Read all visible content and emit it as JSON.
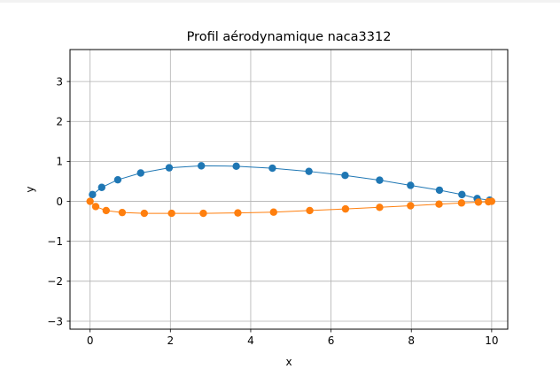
{
  "chart_data": {
    "type": "line",
    "title": "Profil aérodynamique naca3312",
    "xlabel": "x",
    "ylabel": "y",
    "xlim": [
      -0.5,
      10.4
    ],
    "ylim": [
      -3.2,
      3.8
    ],
    "xticks": [
      0,
      2,
      4,
      6,
      8,
      10
    ],
    "xtick_labels": [
      "0",
      "2",
      "4",
      "6",
      "8",
      "10"
    ],
    "yticks": [
      -3,
      -2,
      -1,
      0,
      1,
      2,
      3
    ],
    "ytick_labels": [
      "−3",
      "−2",
      "−1",
      "0",
      "1",
      "2",
      "3"
    ],
    "grid": true,
    "legend": "none",
    "series": [
      {
        "color": "#1f77b4",
        "marker": "circle",
        "x": [
          9.95,
          9.64,
          9.26,
          8.7,
          7.98,
          7.21,
          6.35,
          5.45,
          4.54,
          3.64,
          2.77,
          1.97,
          1.26,
          0.69,
          0.29,
          0.06
        ],
        "y": [
          0.03,
          0.07,
          0.17,
          0.28,
          0.4,
          0.53,
          0.65,
          0.75,
          0.83,
          0.88,
          0.89,
          0.84,
          0.71,
          0.54,
          0.35,
          0.17
        ]
      },
      {
        "color": "#ff7f0e",
        "marker": "circle",
        "x": [
          0.0,
          0.14,
          0.4,
          0.8,
          1.35,
          2.03,
          2.82,
          3.68,
          4.57,
          5.47,
          6.36,
          7.21,
          7.98,
          8.69,
          9.25,
          9.67,
          9.92,
          10.0
        ],
        "y": [
          0.0,
          -0.13,
          -0.23,
          -0.28,
          -0.3,
          -0.3,
          -0.3,
          -0.29,
          -0.27,
          -0.23,
          -0.19,
          -0.15,
          -0.11,
          -0.07,
          -0.04,
          -0.02,
          -0.01,
          0.0
        ]
      }
    ]
  }
}
